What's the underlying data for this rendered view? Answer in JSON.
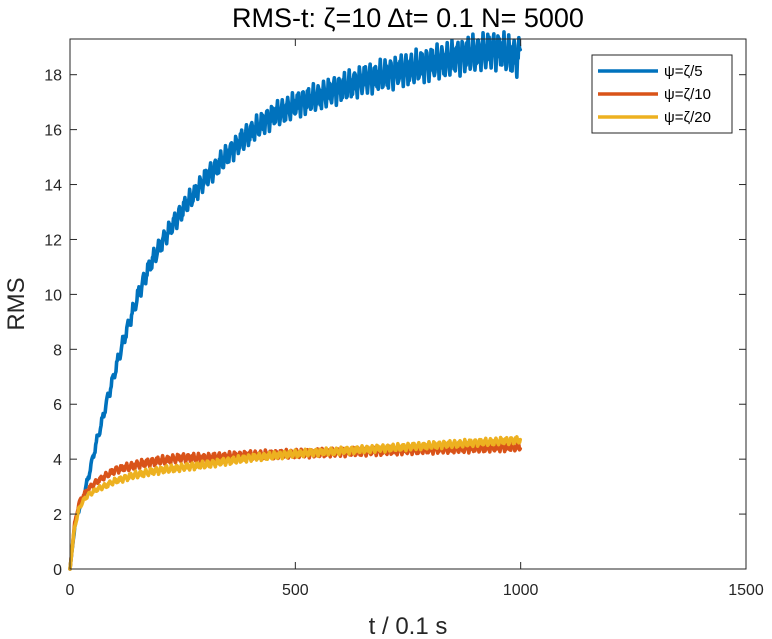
{
  "chart_data": {
    "type": "line",
    "title": "RMS-t:  ζ=10 Δt= 0.1 N= 5000",
    "xlabel": "t / 0.1 s",
    "ylabel": "RMS",
    "xlim": [
      0,
      1500
    ],
    "ylim": [
      0,
      19.3
    ],
    "xticks": [
      "0",
      "500",
      "1000",
      "1500"
    ],
    "yticks": [
      "0",
      "2",
      "4",
      "6",
      "8",
      "10",
      "12",
      "14",
      "16",
      "18"
    ],
    "grid": false,
    "legend_position": "top-right",
    "series": [
      {
        "name": "ψ=ζ/5",
        "color": "#0072BD",
        "x": [
          0,
          10,
          20,
          30,
          40,
          50,
          60,
          70,
          80,
          90,
          100,
          110,
          120,
          130,
          140,
          150,
          170,
          200,
          250,
          300,
          350,
          400,
          450,
          500,
          550,
          600,
          650,
          700,
          750,
          800,
          850,
          900,
          950,
          1000
        ],
        "y": [
          0,
          1.5,
          2.2,
          2.6,
          3.3,
          4.0,
          4.7,
          5.3,
          6.0,
          6.6,
          7.2,
          7.8,
          8.4,
          8.9,
          9.4,
          9.9,
          10.8,
          11.8,
          13.1,
          14.2,
          15.1,
          15.9,
          16.5,
          16.9,
          17.2,
          17.5,
          17.8,
          18.0,
          18.2,
          18.4,
          18.6,
          18.8,
          18.9,
          18.6
        ],
        "wiggle": 0.35
      },
      {
        "name": "ψ=ζ/10",
        "color": "#D95319",
        "x": [
          0,
          10,
          20,
          30,
          40,
          60,
          80,
          100,
          150,
          200,
          250,
          300,
          400,
          500,
          600,
          700,
          800,
          900,
          1000
        ],
        "y": [
          0,
          1.6,
          2.4,
          2.7,
          2.9,
          3.2,
          3.4,
          3.6,
          3.8,
          3.95,
          4.05,
          4.05,
          4.15,
          4.2,
          4.25,
          4.3,
          4.35,
          4.4,
          4.45
        ],
        "wiggle": 0.12
      },
      {
        "name": "ψ=ζ/20",
        "color": "#EDB120",
        "x": [
          0,
          10,
          20,
          30,
          40,
          60,
          80,
          100,
          150,
          200,
          250,
          300,
          400,
          500,
          600,
          700,
          800,
          900,
          1000
        ],
        "y": [
          0,
          1.5,
          2.2,
          2.5,
          2.7,
          2.9,
          3.05,
          3.2,
          3.45,
          3.6,
          3.7,
          3.8,
          4.05,
          4.2,
          4.3,
          4.4,
          4.5,
          4.6,
          4.7
        ],
        "wiggle": 0.1
      }
    ]
  }
}
